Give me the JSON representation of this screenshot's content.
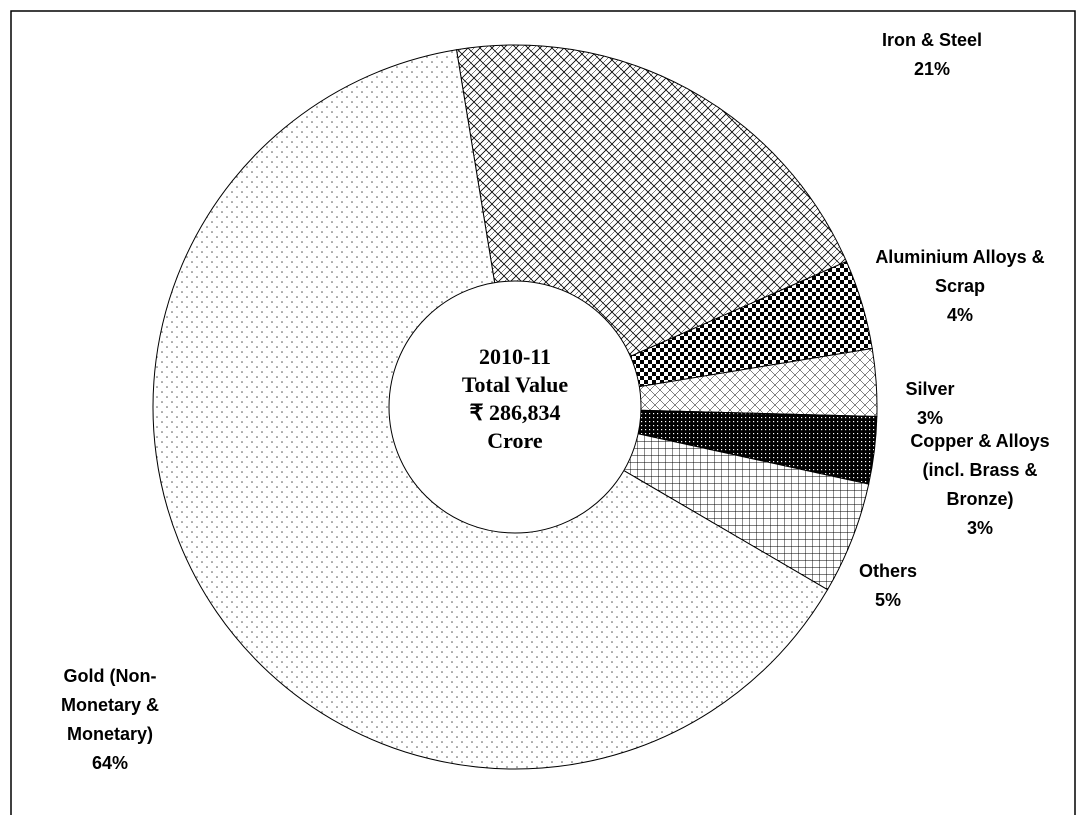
{
  "chart_data": {
    "type": "donut",
    "categories": [
      "Iron & Steel",
      "Aluminium Alloys & Scrap",
      "Silver",
      "Copper & Alloys (incl. Brass & Bronze)",
      "Others",
      "Gold (Non-Monetary & Monetary)"
    ],
    "values": [
      21,
      4,
      3,
      3,
      5,
      64
    ],
    "value_labels": [
      "21%",
      "4%",
      "3%",
      "3%",
      "5%",
      "64%"
    ],
    "center_text": [
      "2010-11",
      "Total Value",
      "₹ 286,834",
      "Crore"
    ]
  }
}
